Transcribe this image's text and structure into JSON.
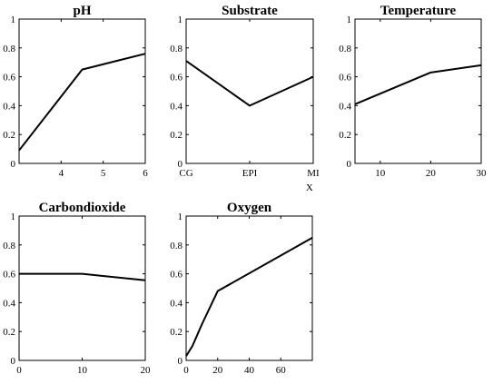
{
  "chart_data": [
    {
      "type": "line",
      "title": "pH",
      "xlabel": "",
      "ylabel": "",
      "xlim": [
        3,
        6
      ],
      "ylim": [
        0,
        1
      ],
      "xticks": [
        4,
        5,
        6
      ],
      "xtick_labels": [
        "4",
        "5",
        "6"
      ],
      "yticks": [
        0,
        0.2,
        0.4,
        0.6,
        0.8,
        1
      ],
      "ytick_labels": [
        "0",
        "0.2",
        "0.4",
        "0.6",
        "0.8",
        "1"
      ],
      "grid": false,
      "series": [
        {
          "x": [
            3,
            4.5,
            6
          ],
          "y": [
            0.09,
            0.65,
            0.76
          ]
        }
      ]
    },
    {
      "type": "line",
      "title": "Substrate",
      "xlabel": "X",
      "ylabel": "",
      "xlim": [
        0,
        2
      ],
      "ylim": [
        0,
        1
      ],
      "xticks": [
        0,
        1,
        2
      ],
      "xtick_labels": [
        "CG",
        "EPI",
        "MI"
      ],
      "yticks": [
        0,
        0.2,
        0.4,
        0.6,
        0.8,
        1
      ],
      "ytick_labels": [
        "0",
        "0.2",
        "0.4",
        "0.6",
        "0.8",
        "1"
      ],
      "grid": false,
      "series": [
        {
          "x": [
            0,
            1,
            2
          ],
          "y": [
            0.71,
            0.4,
            0.6
          ]
        }
      ]
    },
    {
      "type": "line",
      "title": "Temperature",
      "xlabel": "",
      "ylabel": "",
      "xlim": [
        5,
        30
      ],
      "ylim": [
        0,
        1
      ],
      "xticks": [
        10,
        20,
        30
      ],
      "xtick_labels": [
        "10",
        "20",
        "30"
      ],
      "yticks": [
        0,
        0.2,
        0.4,
        0.6,
        0.8,
        1
      ],
      "ytick_labels": [
        "0",
        "0.2",
        "0.4",
        "0.6",
        "0.8",
        "1"
      ],
      "grid": false,
      "series": [
        {
          "x": [
            5,
            20,
            30
          ],
          "y": [
            0.41,
            0.63,
            0.68
          ]
        }
      ]
    },
    {
      "type": "line",
      "title": "Carbondioxide",
      "xlabel": "",
      "ylabel": "",
      "xlim": [
        0,
        20
      ],
      "ylim": [
        0,
        1
      ],
      "xticks": [
        0,
        10,
        20
      ],
      "xtick_labels": [
        "0",
        "10",
        "20"
      ],
      "yticks": [
        0,
        0.2,
        0.4,
        0.6,
        0.8,
        1
      ],
      "ytick_labels": [
        "0",
        "0.2",
        "0.4",
        "0.6",
        "0.8",
        "1"
      ],
      "grid": false,
      "series": [
        {
          "x": [
            0,
            10,
            20
          ],
          "y": [
            0.6,
            0.6,
            0.555
          ]
        }
      ]
    },
    {
      "type": "line",
      "title": "Oxygen",
      "xlabel": "",
      "ylabel": "",
      "xlim": [
        0,
        80
      ],
      "ylim": [
        0,
        1
      ],
      "xticks": [
        0,
        20,
        40,
        60
      ],
      "xtick_labels": [
        "0",
        "20",
        "40",
        "60"
      ],
      "yticks": [
        0,
        0.2,
        0.4,
        0.6,
        0.8,
        1
      ],
      "ytick_labels": [
        "0",
        "0.2",
        "0.4",
        "0.6",
        "0.8",
        "1"
      ],
      "grid": false,
      "series": [
        {
          "x": [
            0,
            4,
            10,
            20,
            80
          ],
          "y": [
            0.03,
            0.1,
            0.25,
            0.48,
            0.85
          ]
        }
      ]
    }
  ]
}
